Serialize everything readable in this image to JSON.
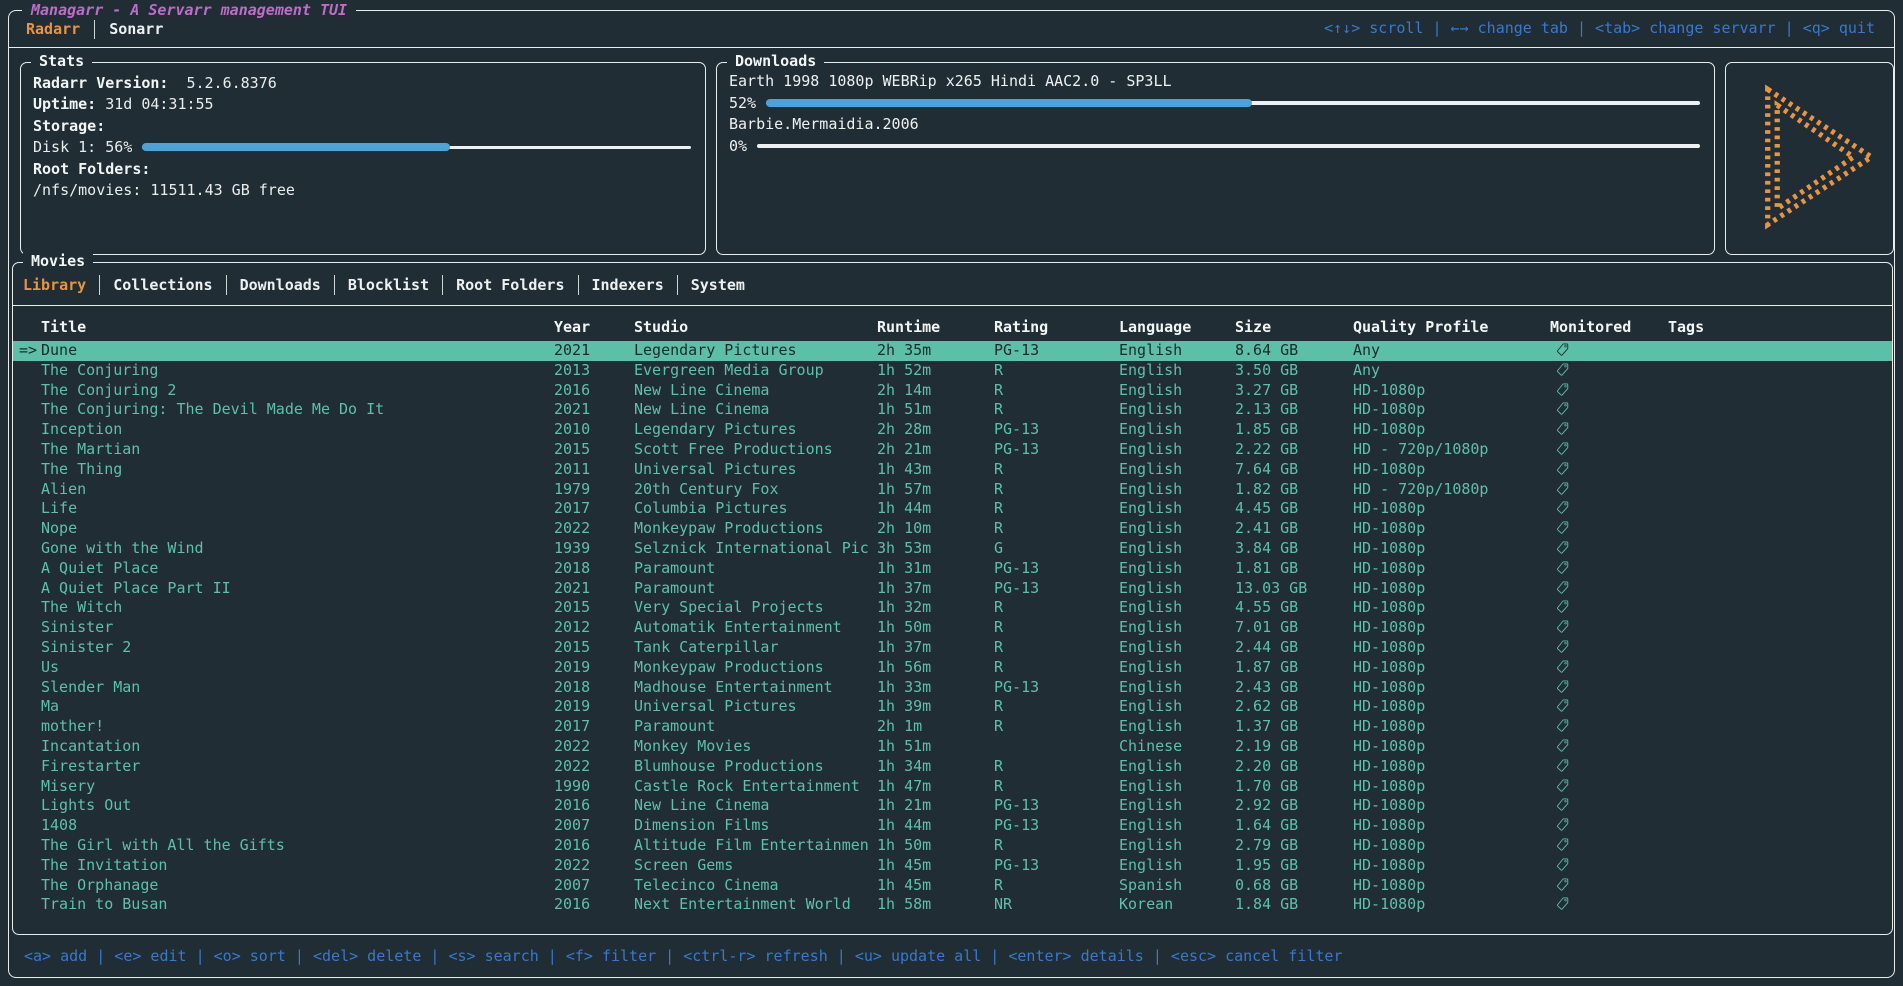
{
  "app": {
    "title": "Managarr - A Servarr management TUI",
    "servarr_tabs": [
      {
        "label": "Radarr",
        "active": true
      },
      {
        "label": "Sonarr",
        "active": false
      }
    ],
    "top_keybinds": [
      "<↑↓> scroll",
      "←→ change tab",
      "<tab> change servarr",
      "<q> quit"
    ],
    "bottom_keybinds": [
      "<a> add",
      "<e> edit",
      "<o> sort",
      "<del> delete",
      "<s> search",
      "<f> filter",
      "<ctrl-r> refresh",
      "<u> update all",
      "<enter> details",
      "<esc> cancel filter"
    ],
    "keybind_separator": " | "
  },
  "stats": {
    "panel_title": "Stats",
    "version_label": "Radarr Version:",
    "version_value": "5.2.6.8376",
    "uptime_label": "Uptime:",
    "uptime_value": "31d 04:31:55",
    "storage_label": "Storage:",
    "disk_label": "Disk 1: 56%",
    "disk_percent": 56,
    "root_folders_label": "Root Folders:",
    "root_folder_value": "/nfs/movies: 11511.43 GB free"
  },
  "downloads": {
    "panel_title": "Downloads",
    "items": [
      {
        "name": "Earth 1998 1080p WEBRip x265 Hindi AAC2.0 - SP3LL",
        "percent": 52,
        "percent_label": "52%"
      },
      {
        "name": "Barbie.Mermaidia.2006",
        "percent": 0,
        "percent_label": "0%"
      }
    ]
  },
  "logo": {
    "icon": "managarr-play-logo"
  },
  "movies": {
    "panel_title": "Movies",
    "tabs": [
      {
        "label": "Library",
        "active": true
      },
      {
        "label": "Collections",
        "active": false
      },
      {
        "label": "Downloads",
        "active": false
      },
      {
        "label": "Blocklist",
        "active": false
      },
      {
        "label": "Root Folders",
        "active": false
      },
      {
        "label": "Indexers",
        "active": false
      },
      {
        "label": "System",
        "active": false
      }
    ],
    "table": {
      "columns": [
        "Title",
        "Year",
        "Studio",
        "Runtime",
        "Rating",
        "Language",
        "Size",
        "Quality Profile",
        "Monitored",
        "Tags"
      ],
      "selected_index": 0,
      "selected_indicator": "=>",
      "monitored_icon": "tag-icon",
      "rows": [
        {
          "title": "Dune",
          "year": "2021",
          "studio": "Legendary Pictures",
          "runtime": "2h 35m",
          "rating": "PG-13",
          "language": "English",
          "size": "8.64 GB",
          "quality_profile": "Any",
          "monitored": true,
          "tags": ""
        },
        {
          "title": "The Conjuring",
          "year": "2013",
          "studio": "Evergreen Media Group",
          "runtime": "1h 52m",
          "rating": "R",
          "language": "English",
          "size": "3.50 GB",
          "quality_profile": "Any",
          "monitored": true,
          "tags": ""
        },
        {
          "title": "The Conjuring 2",
          "year": "2016",
          "studio": "New Line Cinema",
          "runtime": "2h 14m",
          "rating": "R",
          "language": "English",
          "size": "3.27 GB",
          "quality_profile": "HD-1080p",
          "monitored": true,
          "tags": ""
        },
        {
          "title": "The Conjuring: The Devil Made Me Do It",
          "year": "2021",
          "studio": "New Line Cinema",
          "runtime": "1h 51m",
          "rating": "R",
          "language": "English",
          "size": "2.13 GB",
          "quality_profile": "HD-1080p",
          "monitored": true,
          "tags": ""
        },
        {
          "title": "Inception",
          "year": "2010",
          "studio": "Legendary Pictures",
          "runtime": "2h 28m",
          "rating": "PG-13",
          "language": "English",
          "size": "1.85 GB",
          "quality_profile": "HD-1080p",
          "monitored": true,
          "tags": ""
        },
        {
          "title": "The Martian",
          "year": "2015",
          "studio": "Scott Free Productions",
          "runtime": "2h 21m",
          "rating": "PG-13",
          "language": "English",
          "size": "2.22 GB",
          "quality_profile": "HD - 720p/1080p",
          "monitored": true,
          "tags": ""
        },
        {
          "title": "The Thing",
          "year": "2011",
          "studio": "Universal Pictures",
          "runtime": "1h 43m",
          "rating": "R",
          "language": "English",
          "size": "7.64 GB",
          "quality_profile": "HD-1080p",
          "monitored": true,
          "tags": ""
        },
        {
          "title": "Alien",
          "year": "1979",
          "studio": "20th Century Fox",
          "runtime": "1h 57m",
          "rating": "R",
          "language": "English",
          "size": "1.82 GB",
          "quality_profile": "HD - 720p/1080p",
          "monitored": true,
          "tags": ""
        },
        {
          "title": "Life",
          "year": "2017",
          "studio": "Columbia Pictures",
          "runtime": "1h 44m",
          "rating": "R",
          "language": "English",
          "size": "4.45 GB",
          "quality_profile": "HD-1080p",
          "monitored": true,
          "tags": ""
        },
        {
          "title": "Nope",
          "year": "2022",
          "studio": "Monkeypaw Productions",
          "runtime": "2h 10m",
          "rating": "R",
          "language": "English",
          "size": "2.41 GB",
          "quality_profile": "HD-1080p",
          "monitored": true,
          "tags": ""
        },
        {
          "title": "Gone with the Wind",
          "year": "1939",
          "studio": "Selznick International Pic",
          "runtime": "3h 53m",
          "rating": "G",
          "language": "English",
          "size": "3.84 GB",
          "quality_profile": "HD-1080p",
          "monitored": true,
          "tags": ""
        },
        {
          "title": "A Quiet Place",
          "year": "2018",
          "studio": "Paramount",
          "runtime": "1h 31m",
          "rating": "PG-13",
          "language": "English",
          "size": "1.81 GB",
          "quality_profile": "HD-1080p",
          "monitored": true,
          "tags": ""
        },
        {
          "title": "A Quiet Place Part II",
          "year": "2021",
          "studio": "Paramount",
          "runtime": "1h 37m",
          "rating": "PG-13",
          "language": "English",
          "size": "13.03 GB",
          "quality_profile": "HD-1080p",
          "monitored": true,
          "tags": ""
        },
        {
          "title": "The Witch",
          "year": "2015",
          "studio": "Very Special Projects",
          "runtime": "1h 32m",
          "rating": "R",
          "language": "English",
          "size": "4.55 GB",
          "quality_profile": "HD-1080p",
          "monitored": true,
          "tags": ""
        },
        {
          "title": "Sinister",
          "year": "2012",
          "studio": "Automatik Entertainment",
          "runtime": "1h 50m",
          "rating": "R",
          "language": "English",
          "size": "7.01 GB",
          "quality_profile": "HD-1080p",
          "monitored": true,
          "tags": ""
        },
        {
          "title": "Sinister 2",
          "year": "2015",
          "studio": "Tank Caterpillar",
          "runtime": "1h 37m",
          "rating": "R",
          "language": "English",
          "size": "2.44 GB",
          "quality_profile": "HD-1080p",
          "monitored": true,
          "tags": ""
        },
        {
          "title": "Us",
          "year": "2019",
          "studio": "Monkeypaw Productions",
          "runtime": "1h 56m",
          "rating": "R",
          "language": "English",
          "size": "1.87 GB",
          "quality_profile": "HD-1080p",
          "monitored": true,
          "tags": ""
        },
        {
          "title": "Slender Man",
          "year": "2018",
          "studio": "Madhouse Entertainment",
          "runtime": "1h 33m",
          "rating": "PG-13",
          "language": "English",
          "size": "2.43 GB",
          "quality_profile": "HD-1080p",
          "monitored": true,
          "tags": ""
        },
        {
          "title": "Ma",
          "year": "2019",
          "studio": "Universal Pictures",
          "runtime": "1h 39m",
          "rating": "R",
          "language": "English",
          "size": "2.62 GB",
          "quality_profile": "HD-1080p",
          "monitored": true,
          "tags": ""
        },
        {
          "title": "mother!",
          "year": "2017",
          "studio": "Paramount",
          "runtime": "2h 1m",
          "rating": "R",
          "language": "English",
          "size": "1.37 GB",
          "quality_profile": "HD-1080p",
          "monitored": true,
          "tags": ""
        },
        {
          "title": "Incantation",
          "year": "2022",
          "studio": "Monkey Movies",
          "runtime": "1h 51m",
          "rating": "",
          "language": "Chinese",
          "size": "2.19 GB",
          "quality_profile": "HD-1080p",
          "monitored": true,
          "tags": ""
        },
        {
          "title": "Firestarter",
          "year": "2022",
          "studio": "Blumhouse Productions",
          "runtime": "1h 34m",
          "rating": "R",
          "language": "English",
          "size": "2.20 GB",
          "quality_profile": "HD-1080p",
          "monitored": true,
          "tags": ""
        },
        {
          "title": "Misery",
          "year": "1990",
          "studio": "Castle Rock Entertainment",
          "runtime": "1h 47m",
          "rating": "R",
          "language": "English",
          "size": "1.70 GB",
          "quality_profile": "HD-1080p",
          "monitored": true,
          "tags": ""
        },
        {
          "title": "Lights Out",
          "year": "2016",
          "studio": "New Line Cinema",
          "runtime": "1h 21m",
          "rating": "PG-13",
          "language": "English",
          "size": "2.92 GB",
          "quality_profile": "HD-1080p",
          "monitored": true,
          "tags": ""
        },
        {
          "title": "1408",
          "year": "2007",
          "studio": "Dimension Films",
          "runtime": "1h 44m",
          "rating": "PG-13",
          "language": "English",
          "size": "1.64 GB",
          "quality_profile": "HD-1080p",
          "monitored": true,
          "tags": ""
        },
        {
          "title": "The Girl with All the Gifts",
          "year": "2016",
          "studio": "Altitude Film Entertainmen",
          "runtime": "1h 50m",
          "rating": "R",
          "language": "English",
          "size": "2.79 GB",
          "quality_profile": "HD-1080p",
          "monitored": true,
          "tags": ""
        },
        {
          "title": "The Invitation",
          "year": "2022",
          "studio": "Screen Gems",
          "runtime": "1h 45m",
          "rating": "PG-13",
          "language": "English",
          "size": "1.95 GB",
          "quality_profile": "HD-1080p",
          "monitored": true,
          "tags": ""
        },
        {
          "title": "The Orphanage",
          "year": "2007",
          "studio": "Telecinco Cinema",
          "runtime": "1h 45m",
          "rating": "R",
          "language": "Spanish",
          "size": "0.68 GB",
          "quality_profile": "HD-1080p",
          "monitored": true,
          "tags": ""
        },
        {
          "title": "Train to Busan",
          "year": "2016",
          "studio": "Next Entertainment World",
          "runtime": "1h 58m",
          "rating": "NR",
          "language": "Korean",
          "size": "1.84 GB",
          "quality_profile": "HD-1080p",
          "monitored": true,
          "tags": ""
        }
      ]
    }
  },
  "colors": {
    "background": "#212d34",
    "border": "#e9edee",
    "accent_orange": "#e9953e",
    "title_purple": "#bd6cc8",
    "keybind_blue": "#3679cf",
    "table_teal": "#5cc0ab",
    "selection_teal": "#5cbfa8",
    "progress_blue": "#4aa3da"
  }
}
